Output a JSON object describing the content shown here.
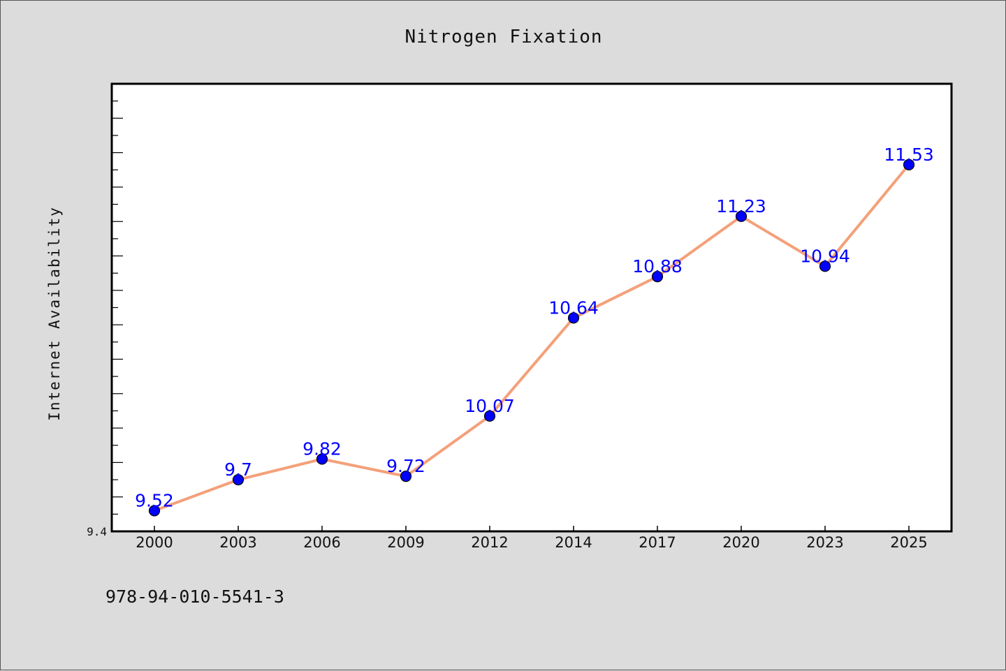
{
  "chart_data": {
    "type": "line",
    "title": "Nitrogen Fixation",
    "xlabel": "",
    "ylabel": "Internet Availability",
    "categories": [
      "2000",
      "2003",
      "2006",
      "2009",
      "2012",
      "2014",
      "2017",
      "2020",
      "2023",
      "2025"
    ],
    "series": [
      {
        "values": [
          9.52,
          9.7,
          9.82,
          9.72,
          10.07,
          10.64,
          10.88,
          11.23,
          10.94,
          11.53
        ],
        "data_labels": [
          "9.52",
          "9.7",
          "9.82",
          "9.72",
          "10.07",
          "10.64",
          "10.88",
          "11.23",
          "10.94",
          "11.53"
        ],
        "line_color": "#f4a07a",
        "marker_color": "#0000ff"
      }
    ],
    "yticks": [
      "9.4"
    ],
    "ylim": [
      9.4,
      12.0
    ],
    "grid": false,
    "legend": "none"
  },
  "caption": "978-94-010-5541-3"
}
